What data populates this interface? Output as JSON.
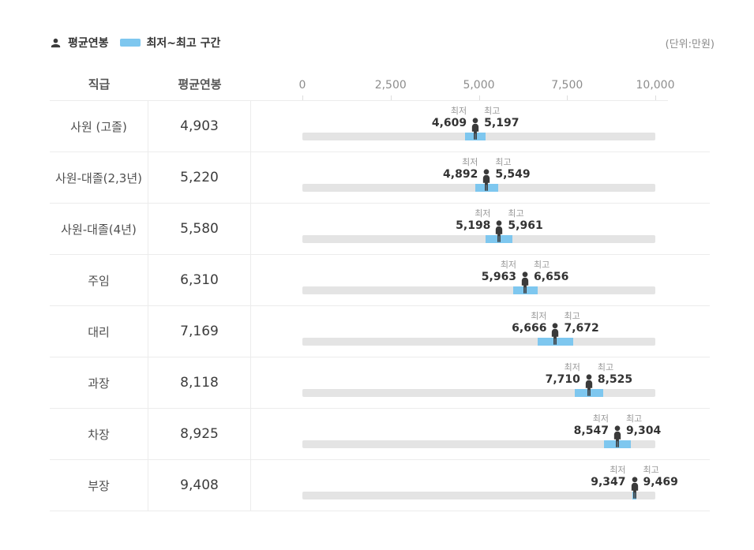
{
  "legend": {
    "avg": {
      "icon": "person-icon",
      "label": "평균연봉"
    },
    "range": {
      "icon": "range-swatch",
      "label": "최저~최고 구간"
    },
    "unit_note": "(단위:만원)"
  },
  "header": {
    "position": "직급",
    "avg_salary": "평균연봉"
  },
  "labels": {
    "min": "최저",
    "max": "최고"
  },
  "colors": {
    "range_blue": "#7ec7ef",
    "track_gray": "#e4e4e4",
    "person_dark": "#3a3a3a",
    "border_gray": "#ececec",
    "value_text": "#333333",
    "caption_text": "#999999",
    "axis_text": "#8d8d8d"
  },
  "chart_data": {
    "type": "bar",
    "subtype": "horizontal-range-bar-with-marker",
    "unit": "만원",
    "categories": [
      "사원 (고졸)",
      "사원-대졸(2,3년)",
      "사원-대졸(4년)",
      "주임",
      "대리",
      "과장",
      "차장",
      "부장"
    ],
    "series": [
      {
        "name": "평균연봉",
        "values": [
          4903,
          5220,
          5580,
          6310,
          7169,
          8118,
          8925,
          9408
        ]
      },
      {
        "name": "최저",
        "values": [
          4609,
          4892,
          5198,
          5963,
          6666,
          7710,
          8547,
          9347
        ]
      },
      {
        "name": "최고",
        "values": [
          5197,
          5549,
          5961,
          6656,
          7672,
          8525,
          9304,
          9469
        ]
      }
    ],
    "xlim": [
      0,
      10000
    ],
    "xticks": [
      0,
      2500,
      5000,
      7500,
      10000
    ],
    "xtick_labels": [
      "0",
      "2,500",
      "5,000",
      "7,500",
      "10,000"
    ],
    "grid": false,
    "legend_entries": [
      "평균연봉",
      "최저~최고 구간"
    ],
    "legend_position": "top-left"
  }
}
